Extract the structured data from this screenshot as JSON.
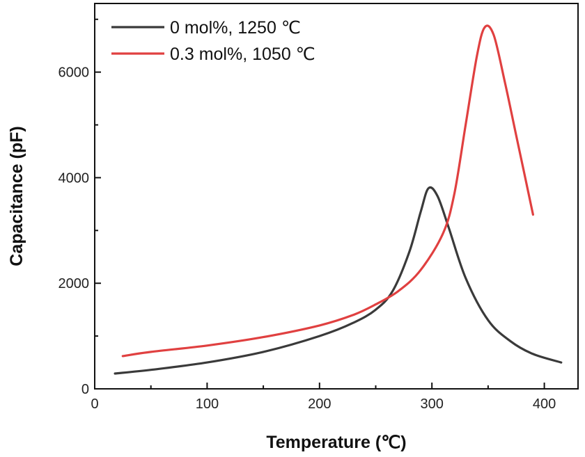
{
  "chart_data": {
    "type": "line",
    "xlabel": "Temperature (℃)",
    "ylabel": "Capacitance (pF)",
    "xlim": [
      0,
      430
    ],
    "ylim": [
      0,
      7300
    ],
    "x_ticks": [
      0,
      100,
      200,
      300,
      400
    ],
    "y_ticks": [
      0,
      2000,
      4000,
      6000
    ],
    "x_tick_labels": [
      "0",
      "100",
      "200",
      "300",
      "400"
    ],
    "y_tick_labels": [
      "0",
      "2000",
      "4000",
      "6000"
    ],
    "grid": false,
    "legend_position": "top-left",
    "series": [
      {
        "name": "0 mol%, 1250 ℃",
        "color": "#3a3a3a",
        "x": [
          18,
          50,
          100,
          150,
          200,
          230,
          250,
          265,
          280,
          290,
          297,
          305,
          315,
          330,
          350,
          370,
          390,
          415
        ],
        "y": [
          290,
          360,
          500,
          700,
          1000,
          1250,
          1500,
          1850,
          2600,
          3350,
          3800,
          3650,
          3050,
          2100,
          1300,
          900,
          660,
          500
        ]
      },
      {
        "name": "0.3 mol%, 1050 ℃",
        "color": "#e04040",
        "x": [
          25,
          50,
          100,
          150,
          200,
          230,
          250,
          270,
          290,
          310,
          320,
          330,
          340,
          347,
          355,
          365,
          375,
          390
        ],
        "y": [
          620,
          700,
          820,
          980,
          1200,
          1400,
          1600,
          1850,
          2250,
          2950,
          3700,
          5000,
          6300,
          6850,
          6700,
          5800,
          4800,
          3300
        ]
      }
    ]
  }
}
